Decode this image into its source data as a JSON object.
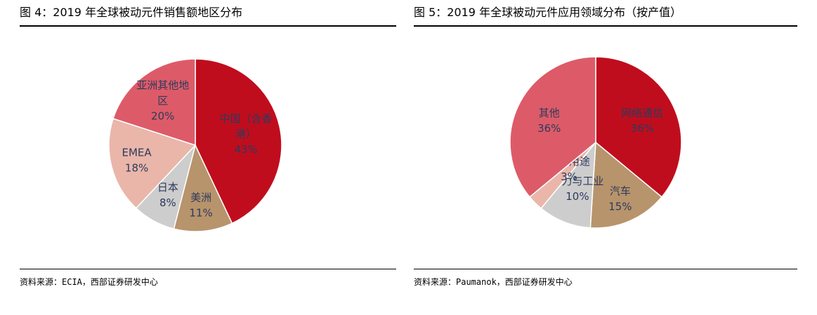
{
  "figures": [
    {
      "title": "图 4：2019 年全球被动元件销售额地区分布",
      "source": "资料来源：ECIA，西部证券研发中心"
    },
    {
      "title": "图 5：2019 年全球被动元件应用领域分布（按产值）",
      "source": "资料来源：Paumanok，西部证券研发中心"
    }
  ],
  "chart_data": [
    {
      "type": "pie",
      "title": "图 4：2019 年全球被动元件销售额地区分布",
      "start_angle_deg": 0,
      "direction": "clockwise",
      "slices": [
        {
          "label": "中国（含香港）",
          "label_lines": [
            "中国（含香",
            "港）"
          ],
          "value": 43,
          "value_label": "43%",
          "color": "#c00d1e"
        },
        {
          "label": "美洲",
          "label_lines": [
            "美洲"
          ],
          "value": 11,
          "value_label": "11%",
          "color": "#b8946c"
        },
        {
          "label": "日本",
          "label_lines": [
            "日本"
          ],
          "value": 8,
          "value_label": "8%",
          "color": "#cdcdcd"
        },
        {
          "label": "EMEA",
          "label_lines": [
            "EMEA"
          ],
          "value": 18,
          "value_label": "18%",
          "color": "#eab6aa"
        },
        {
          "label": "亚洲其他地区",
          "label_lines": [
            "亚洲其他地",
            "区"
          ],
          "value": 20,
          "value_label": "20%",
          "color": "#dd5b68"
        }
      ]
    },
    {
      "type": "pie",
      "title": "图 5：2019 年全球被动元件应用领域分布（按产值）",
      "start_angle_deg": 0,
      "direction": "clockwise",
      "slices": [
        {
          "label": "网络通信",
          "label_lines": [
            "网络通信"
          ],
          "value": 36,
          "value_label": "36%",
          "color": "#c00d1e"
        },
        {
          "label": "汽车",
          "label_lines": [
            "汽车"
          ],
          "value": 15,
          "value_label": "15%",
          "color": "#b8946c"
        },
        {
          "label": "电力与工业",
          "label_lines": [
            "电力与工业"
          ],
          "value": 10,
          "value_label": "10%",
          "color": "#cdcdcd"
        },
        {
          "label": "特殊用途",
          "label_lines": [
            "特殊用途"
          ],
          "value": 3,
          "value_label": "3%",
          "color": "#eab6aa"
        },
        {
          "label": "其他",
          "label_lines": [
            "其他"
          ],
          "value": 36,
          "value_label": "36%",
          "color": "#dd5b68"
        }
      ]
    }
  ]
}
